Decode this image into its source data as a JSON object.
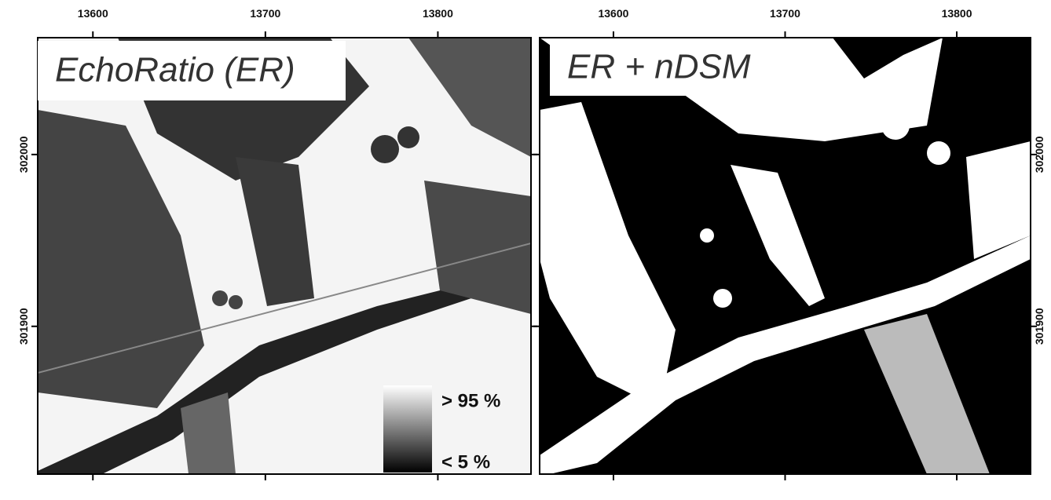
{
  "panels": [
    {
      "title": "EchoRatio (ER)",
      "xlim": [
        13568,
        13854
      ],
      "ylim": [
        301814,
        302068
      ],
      "xticks": [
        13600,
        13700,
        13800
      ],
      "yticks": [
        301900,
        302000
      ]
    },
    {
      "title": "ER + nDSM",
      "xlim": [
        13557,
        13843
      ],
      "ylim": [
        301814,
        302068
      ],
      "xticks": [
        13600,
        13700,
        13800
      ],
      "yticks": [
        301900,
        302000
      ]
    }
  ],
  "legend": {
    "high": "> 95 %",
    "low": "< 5 %"
  }
}
